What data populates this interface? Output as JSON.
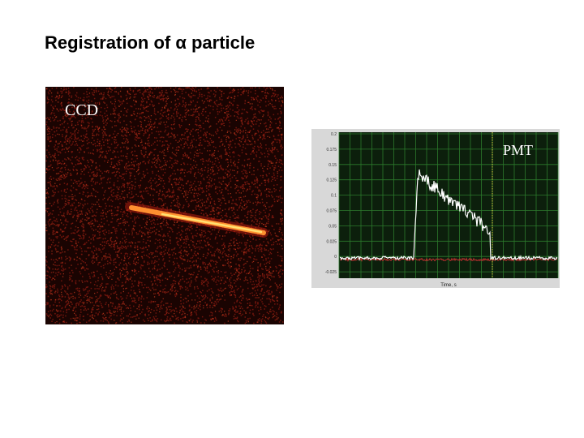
{
  "title": "Registration of  α  particle",
  "ccd_label": "CCD",
  "pmt_label": "PMT",
  "pmt_plot": {
    "y_tick_labels": [
      "0.2",
      "0.175",
      "0.15",
      "0.125",
      "0.1",
      "0.075",
      "0.05",
      "0.025",
      "0",
      "-0.025"
    ],
    "x_axis_label": "Time, s"
  }
}
